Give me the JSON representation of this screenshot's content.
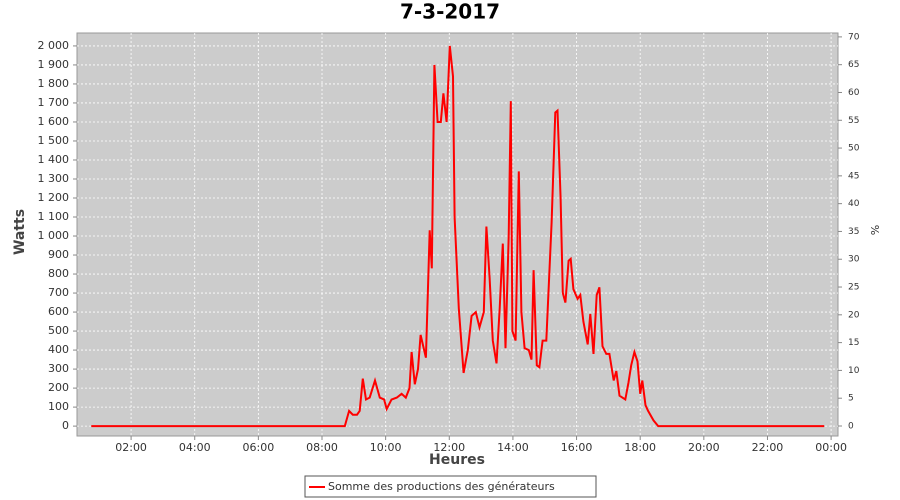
{
  "chart_data": {
    "type": "line",
    "title": "7-3-2017",
    "x_label": "Heures",
    "y_label": "Watts",
    "y2_label": "%",
    "x": [
      45,
      523,
      531,
      538,
      546,
      551,
      557,
      563,
      570,
      580,
      589,
      597,
      602,
      611,
      621,
      630,
      638,
      645,
      649,
      655,
      661,
      666,
      676,
      683,
      687,
      692,
      698,
      704,
      709,
      715,
      721,
      727,
      730,
      738,
      747,
      755,
      762,
      770,
      777,
      785,
      790,
      796,
      802,
      809,
      815,
      821,
      826,
      832,
      836,
      839,
      845,
      851,
      856,
      862,
      870,
      875,
      879,
      885,
      890,
      896,
      903,
      913,
      920,
      924,
      930,
      934,
      939,
      945,
      949,
      954,
      962,
      967,
      973,
      981,
      986,
      992,
      998,
      1003,
      1009,
      1016,
      1022,
      1030,
      1035,
      1041,
      1052,
      1058,
      1063,
      1069,
      1075,
      1080,
      1084,
      1090,
      1095,
      1105,
      1114,
      1192,
      1380,
      1427
    ],
    "series": [
      {
        "name": "Somme des productions des  générateurs",
        "color": "#ff0000",
        "values": [
          0,
          0,
          80,
          60,
          60,
          80,
          250,
          140,
          150,
          240,
          150,
          140,
          90,
          140,
          150,
          170,
          150,
          200,
          390,
          220,
          300,
          480,
          360,
          1030,
          830,
          1900,
          1600,
          1600,
          1750,
          1600,
          2000,
          1840,
          1100,
          620,
          280,
          400,
          580,
          600,
          520,
          600,
          1050,
          780,
          450,
          330,
          620,
          960,
          410,
          1000,
          1710,
          500,
          450,
          1340,
          600,
          410,
          400,
          350,
          820,
          320,
          310,
          450,
          450,
          1070,
          1650,
          1660,
          1200,
          700,
          650,
          870,
          880,
          720,
          670,
          690,
          550,
          430,
          590,
          380,
          690,
          730,
          420,
          380,
          380,
          240,
          290,
          160,
          140,
          230,
          320,
          390,
          340,
          170,
          240,
          110,
          80,
          30,
          0,
          0,
          0,
          0
        ]
      }
    ],
    "xlim": [
      18,
      1453
    ],
    "xticks": [
      {
        "value": 120,
        "label": "02:00"
      },
      {
        "value": 240,
        "label": "04:00"
      },
      {
        "value": 360,
        "label": "06:00"
      },
      {
        "value": 480,
        "label": "08:00"
      },
      {
        "value": 600,
        "label": "10:00"
      },
      {
        "value": 720,
        "label": "12:00"
      },
      {
        "value": 840,
        "label": "14:00"
      },
      {
        "value": 960,
        "label": "16:00"
      },
      {
        "value": 1080,
        "label": "18:00"
      },
      {
        "value": 1200,
        "label": "20:00"
      },
      {
        "value": 1320,
        "label": "22:00"
      },
      {
        "value": 1440,
        "label": "00:00"
      }
    ],
    "ylim": [
      -52,
      2068
    ],
    "yticks": [
      0,
      100,
      200,
      300,
      400,
      500,
      600,
      700,
      800,
      900,
      {
        "value": 1000,
        "label": "1 000"
      },
      {
        "value": 1100,
        "label": "1 100"
      },
      {
        "value": 1200,
        "label": "1 200"
      },
      {
        "value": 1300,
        "label": "1 300"
      },
      {
        "value": 1400,
        "label": "1 400"
      },
      {
        "value": 1500,
        "label": "1 500"
      },
      {
        "value": 1600,
        "label": "1 600"
      },
      {
        "value": 1700,
        "label": "1 700"
      },
      {
        "value": 1800,
        "label": "1 800"
      },
      {
        "value": 1900,
        "label": "1 900"
      },
      {
        "value": 2000,
        "label": "2 000"
      }
    ],
    "y2lim": [
      -1.8,
      70.7
    ],
    "y2ticks": [
      0,
      5,
      10,
      15,
      20,
      25,
      30,
      35,
      40,
      45,
      50,
      55,
      60,
      65,
      70
    ],
    "grid": true
  }
}
